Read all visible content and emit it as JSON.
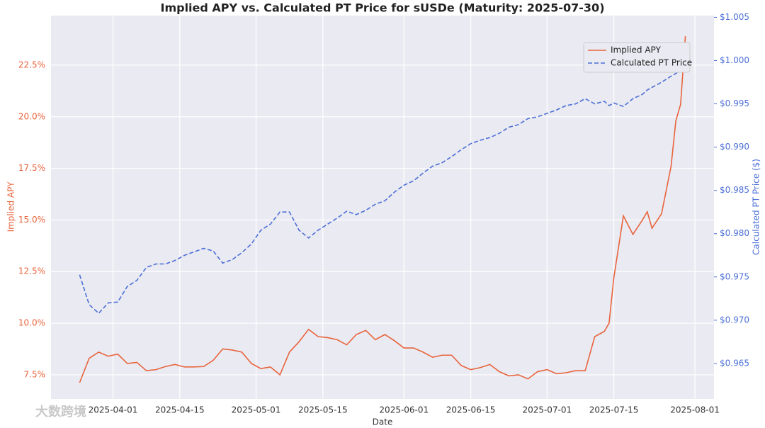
{
  "chart_data": {
    "type": "line",
    "title": "Implied APY vs. Calculated PT Price for sUSDe (Maturity: 2025-07-30)",
    "x_label": "Date",
    "y_label": "Implied APY",
    "y2_label": "Calculated PT Price ($)",
    "watermark": "大数跨境",
    "grid": true,
    "legend": "upper right",
    "x": [
      "2025-03-25",
      "2025-03-27",
      "2025-03-29",
      "2025-03-31",
      "2025-04-02",
      "2025-04-04",
      "2025-04-06",
      "2025-04-08",
      "2025-04-10",
      "2025-04-12",
      "2025-04-14",
      "2025-04-16",
      "2025-04-18",
      "2025-04-20",
      "2025-04-22",
      "2025-04-24",
      "2025-04-26",
      "2025-04-28",
      "2025-04-30",
      "2025-05-02",
      "2025-05-04",
      "2025-05-06",
      "2025-05-08",
      "2025-05-10",
      "2025-05-12",
      "2025-05-14",
      "2025-05-16",
      "2025-05-18",
      "2025-05-20",
      "2025-05-22",
      "2025-05-24",
      "2025-05-26",
      "2025-05-28",
      "2025-05-30",
      "2025-06-01",
      "2025-06-03",
      "2025-06-05",
      "2025-06-07",
      "2025-06-09",
      "2025-06-11",
      "2025-06-13",
      "2025-06-15",
      "2025-06-17",
      "2025-06-19",
      "2025-06-21",
      "2025-06-23",
      "2025-06-25",
      "2025-06-27",
      "2025-06-29",
      "2025-07-01",
      "2025-07-03",
      "2025-07-05",
      "2025-07-07",
      "2025-07-09",
      "2025-07-11",
      "2025-07-13",
      "2025-07-14",
      "2025-07-15",
      "2025-07-17",
      "2025-07-19",
      "2025-07-21",
      "2025-07-22",
      "2025-07-23",
      "2025-07-25",
      "2025-07-27",
      "2025-07-28",
      "2025-07-29",
      "2025-07-30"
    ],
    "series": [
      {
        "name": "Implied APY",
        "color": "#e8643c",
        "dash": false,
        "values": [
          7.12,
          8.3,
          8.6,
          8.4,
          8.5,
          8.05,
          8.1,
          7.7,
          7.75,
          7.9,
          8.0,
          7.88,
          7.88,
          7.9,
          8.2,
          8.75,
          8.7,
          8.6,
          8.05,
          7.8,
          7.88,
          7.5,
          8.6,
          9.1,
          9.7,
          9.35,
          9.3,
          9.2,
          8.95,
          9.45,
          9.65,
          9.2,
          9.45,
          9.15,
          8.8,
          8.8,
          8.6,
          8.35,
          8.45,
          8.45,
          7.95,
          7.75,
          7.85,
          8.0,
          7.65,
          7.45,
          7.5,
          7.3,
          7.65,
          7.75,
          7.55,
          7.6,
          7.7,
          7.7,
          9.35,
          9.6,
          10.0,
          12.2,
          15.2,
          14.3,
          15.0,
          15.4,
          14.6,
          15.3,
          17.6,
          19.8,
          20.6,
          23.9
        ]
      },
      {
        "name": "Calculated PT Price",
        "color": "#4c6fd6",
        "dash": true,
        "axis": "y2",
        "values": [
          0.97525,
          0.9718,
          0.9708,
          0.972,
          0.9721,
          0.9739,
          0.9746,
          0.9761,
          0.9765,
          0.9765,
          0.9769,
          0.9775,
          0.9779,
          0.9783,
          0.978,
          0.9766,
          0.977,
          0.9778,
          0.9788,
          0.9804,
          0.9811,
          0.9825,
          0.9825,
          0.9804,
          0.9795,
          0.9804,
          0.9811,
          0.9818,
          0.9826,
          0.9822,
          0.9827,
          0.9834,
          0.9838,
          0.9848,
          0.9856,
          0.9861,
          0.987,
          0.9878,
          0.9882,
          0.9889,
          0.9897,
          0.9904,
          0.9908,
          0.9911,
          0.9916,
          0.9923,
          0.9926,
          0.9933,
          0.9935,
          0.9939,
          0.9943,
          0.9948,
          0.995,
          0.9956,
          0.995,
          0.9953,
          0.9948,
          0.9951,
          0.9947,
          0.9956,
          0.9961,
          0.9966,
          0.9969,
          0.9975,
          0.9982,
          0.9985,
          0.999,
          0.9993
        ]
      }
    ],
    "xlim": [
      "2025-03-19",
      "2025-08-05"
    ],
    "xticks": [
      "2025-04-01",
      "2025-04-15",
      "2025-05-01",
      "2025-05-15",
      "2025-06-01",
      "2025-06-15",
      "2025-07-01",
      "2025-07-15",
      "2025-08-01"
    ],
    "ylim": [
      6.33,
      24.9
    ],
    "yticks": [
      {
        "value": 7.5,
        "label": "7.5%"
      },
      {
        "value": 10,
        "label": "10.0%"
      },
      {
        "value": 12.5,
        "label": "12.5%"
      },
      {
        "value": 15,
        "label": "15.0%"
      },
      {
        "value": 17.5,
        "label": "17.5%"
      },
      {
        "value": 20,
        "label": "20.0%"
      },
      {
        "value": 22.5,
        "label": "22.5%"
      }
    ],
    "y2lim": [
      0.9609,
      1.0052
    ],
    "y2ticks": [
      {
        "value": 0.965,
        "label": "$0.965"
      },
      {
        "value": 0.97,
        "label": "$0.970"
      },
      {
        "value": 0.975,
        "label": "$0.975"
      },
      {
        "value": 0.98,
        "label": "$0.980"
      },
      {
        "value": 0.985,
        "label": "$0.985"
      },
      {
        "value": 0.99,
        "label": "$0.990"
      },
      {
        "value": 0.995,
        "label": "$0.995"
      },
      {
        "value": 1.0,
        "label": "$1.000"
      },
      {
        "value": 1.005,
        "label": "$1.005"
      }
    ]
  }
}
